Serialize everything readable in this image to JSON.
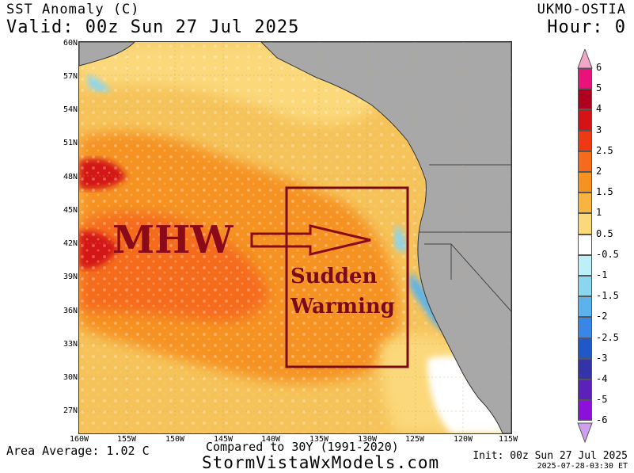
{
  "header": {
    "title": "SST Anomaly (C)",
    "valid": "Valid: 00z Sun 27 Jul 2025",
    "model": "UKMO-OSTIA",
    "hour": "Hour: 0"
  },
  "map": {
    "lat_labels": [
      "60N",
      "57N",
      "54N",
      "51N",
      "48N",
      "45N",
      "42N",
      "39N",
      "36N",
      "33N",
      "30N",
      "27N"
    ],
    "lon_labels": [
      "160W",
      "155W",
      "150W",
      "145W",
      "140W",
      "135W",
      "130W",
      "125W",
      "120W",
      "115W"
    ],
    "annotations": {
      "mhw": "MHW",
      "sudden": "Sudden",
      "warming": "Warming"
    },
    "colors": {
      "land": "#a8a8a8",
      "warm_base": "#f6c35a",
      "annotation": "#7a0a16"
    }
  },
  "colorbar": {
    "labels": [
      "6",
      "5",
      "4",
      "3",
      "2.5",
      "2",
      "1.5",
      "1",
      "0.5",
      "-0.5",
      "-1",
      "-1.5",
      "-2",
      "-2.5",
      "-3",
      "-4",
      "-5",
      "-6"
    ],
    "colors": [
      "#e8127a",
      "#b0001f",
      "#d41414",
      "#ee3a14",
      "#f66a1c",
      "#f69222",
      "#f7b440",
      "#fbd87a",
      "#ffffff",
      "#bdeff7",
      "#8ad6f0",
      "#5cb2ec",
      "#3a86e6",
      "#2058c8",
      "#3434a8",
      "#5a22b8",
      "#8c10d8"
    ]
  },
  "footer": {
    "area_average": "Area Average: 1.02 C",
    "compared": "Compared to 30Y (1991-2020)",
    "site": "StormVistaWxModels.com",
    "init": "Init: 00z Sun 27 Jul 2025",
    "stamp": "2025-07-28-03:30 ET"
  }
}
